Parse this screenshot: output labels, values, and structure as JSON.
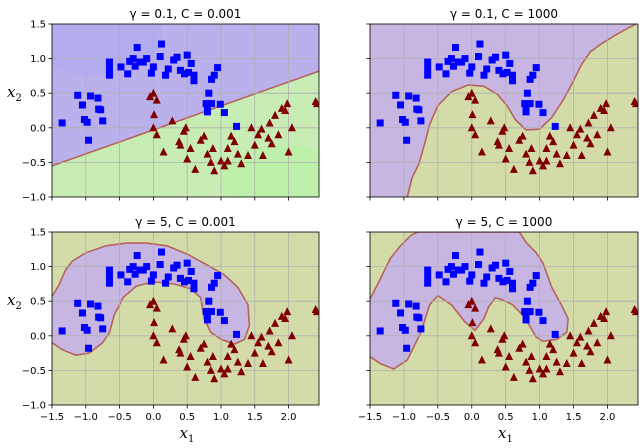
{
  "chart_data": [
    {
      "type": "scatter",
      "title": "γ = 0.1, C = 0.001",
      "title_parts": {
        "gamma": "γ = 0.1",
        "sep": ", ",
        "c": "C = 0.001"
      },
      "xlabel": "",
      "ylabel": "x2",
      "ylabel_sub": "2",
      "xlim": [
        -1.5,
        2.45
      ],
      "ylim": [
        -1.0,
        1.5
      ],
      "xticks": [],
      "yticks": [
        "−1.0",
        "−0.5",
        "0.0",
        "0.5",
        "1.0",
        "1.5"
      ],
      "grid": true,
      "boundary": "linear",
      "colors": {
        "class0_region": "#b9b0ec",
        "class1_region": "#c8edb4",
        "boundary": "#b5635d",
        "class0_marker": "#0000ff",
        "class1_marker": "#800000"
      }
    },
    {
      "type": "scatter",
      "title": "γ = 0.1, C = 1000",
      "title_parts": {
        "gamma": "γ = 0.1",
        "sep": ", ",
        "c": "C = 1000"
      },
      "xlabel": "",
      "ylabel": "",
      "xlim": [
        -1.5,
        2.45
      ],
      "ylim": [
        -1.0,
        1.5
      ],
      "xticks": [],
      "yticks": [],
      "grid": true,
      "boundary": "curved",
      "colors": {
        "class0_region": "#c8b6e2",
        "class1_region": "#d3dca9",
        "boundary": "#b5635d",
        "class0_marker": "#0000ff",
        "class1_marker": "#800000"
      }
    },
    {
      "type": "scatter",
      "title": "γ = 5, C = 0.001",
      "title_parts": {
        "gamma": "γ = 5",
        "sep": ", ",
        "c": "C = 0.001"
      },
      "xlabel": "x1",
      "xlabel_sub": "1",
      "ylabel": "x2",
      "ylabel_sub": "2",
      "xlim": [
        -1.5,
        2.45
      ],
      "ylim": [
        -1.0,
        1.5
      ],
      "xticks": [
        "−1.5",
        "−1.0",
        "−0.5",
        "0.0",
        "0.5",
        "1.0",
        "1.5",
        "2.0"
      ],
      "yticks": [
        "−1.0",
        "−0.5",
        "0.0",
        "0.5",
        "1.0",
        "1.5"
      ],
      "grid": true,
      "boundary": "moon",
      "colors": {
        "class0_region": "#c8b6e2",
        "class1_region": "#d3dca9",
        "boundary": "#b5635d",
        "class0_marker": "#0000ff",
        "class1_marker": "#800000"
      }
    },
    {
      "type": "scatter",
      "title": "γ = 5, C = 1000",
      "title_parts": {
        "gamma": "γ = 5",
        "sep": ", ",
        "c": "C = 1000"
      },
      "xlabel": "x1",
      "xlabel_sub": "1",
      "ylabel": "",
      "xlim": [
        -1.5,
        2.45
      ],
      "ylim": [
        -1.0,
        1.5
      ],
      "xticks": [
        "−1.5",
        "−1.0",
        "−0.5",
        "0.0",
        "0.5",
        "1.0",
        "1.5",
        "2.0"
      ],
      "yticks": [],
      "grid": true,
      "boundary": "tight",
      "colors": {
        "class0_region": "#c8b6e2",
        "class1_region": "#d3dca9",
        "boundary": "#b5635d",
        "class0_marker": "#0000ff",
        "class1_marker": "#800000"
      }
    }
  ],
  "points": {
    "class0_squares": [
      [
        -1.35,
        0.07
      ],
      [
        -1.12,
        0.47
      ],
      [
        -1.05,
        0.33
      ],
      [
        -1.02,
        0.12
      ],
      [
        -0.98,
        0.08
      ],
      [
        -0.96,
        -0.18
      ],
      [
        -0.93,
        0.46
      ],
      [
        -0.82,
        0.43
      ],
      [
        -0.81,
        0.27
      ],
      [
        -0.78,
        0.26
      ],
      [
        -0.75,
        0.1
      ],
      [
        -0.65,
        0.95
      ],
      [
        -0.65,
        0.85
      ],
      [
        -0.65,
        0.76
      ],
      [
        -0.48,
        0.88
      ],
      [
        -0.38,
        0.78
      ],
      [
        -0.35,
        0.96
      ],
      [
        -0.3,
        1.0
      ],
      [
        -0.27,
        0.89
      ],
      [
        -0.24,
        1.16
      ],
      [
        -0.2,
        0.95
      ],
      [
        -0.15,
        0.95
      ],
      [
        -0.1,
        1.0
      ],
      [
        -0.03,
        0.79
      ],
      [
        0.0,
        0.88
      ],
      [
        0.1,
        1.03
      ],
      [
        0.12,
        1.21
      ],
      [
        0.18,
        0.76
      ],
      [
        0.22,
        0.85
      ],
      [
        0.3,
        0.98
      ],
      [
        0.35,
        1.02
      ],
      [
        0.4,
        0.83
      ],
      [
        0.46,
        0.78
      ],
      [
        0.5,
        1.05
      ],
      [
        0.52,
        0.8
      ],
      [
        0.56,
        0.93
      ],
      [
        0.6,
        0.68
      ],
      [
        0.6,
        0.76
      ],
      [
        0.78,
        0.35
      ],
      [
        0.8,
        0.33
      ],
      [
        0.8,
        0.23
      ],
      [
        0.82,
        0.5
      ],
      [
        0.86,
        0.7
      ],
      [
        0.86,
        0.35
      ],
      [
        0.9,
        0.76
      ],
      [
        0.95,
        0.87
      ],
      [
        0.99,
        0.34
      ],
      [
        1.05,
        0.22
      ],
      [
        1.23,
        0.02
      ]
    ],
    "class1_triangles": [
      [
        -0.05,
        0.45
      ],
      [
        0.0,
        0.5
      ],
      [
        0.05,
        0.4
      ],
      [
        0.01,
        0.19
      ],
      [
        0.0,
        0.0
      ],
      [
        0.05,
        -0.1
      ],
      [
        0.15,
        -0.35
      ],
      [
        0.28,
        0.1
      ],
      [
        0.38,
        -0.2
      ],
      [
        0.4,
        -0.25
      ],
      [
        0.45,
        -0.05
      ],
      [
        0.48,
        0.0
      ],
      [
        0.5,
        -0.45
      ],
      [
        0.55,
        -0.3
      ],
      [
        0.62,
        -0.6
      ],
      [
        0.7,
        -0.18
      ],
      [
        0.75,
        -0.12
      ],
      [
        0.8,
        -0.38
      ],
      [
        0.85,
        -0.5
      ],
      [
        0.88,
        -0.3
      ],
      [
        0.9,
        -0.62
      ],
      [
        1.0,
        -0.48
      ],
      [
        1.05,
        -0.55
      ],
      [
        1.1,
        -0.3
      ],
      [
        1.1,
        -0.48
      ],
      [
        1.15,
        -0.12
      ],
      [
        1.2,
        -0.2
      ],
      [
        1.25,
        -0.38
      ],
      [
        1.3,
        -0.52
      ],
      [
        1.4,
        -0.4
      ],
      [
        1.45,
        0.0
      ],
      [
        1.5,
        -0.25
      ],
      [
        1.55,
        -0.1
      ],
      [
        1.6,
        -0.02
      ],
      [
        1.62,
        -0.4
      ],
      [
        1.7,
        -0.15
      ],
      [
        1.72,
        0.07
      ],
      [
        1.75,
        -0.23
      ],
      [
        1.8,
        0.18
      ],
      [
        1.85,
        -0.1
      ],
      [
        1.9,
        0.28
      ],
      [
        1.95,
        0.25
      ],
      [
        1.98,
        0.35
      ],
      [
        2.0,
        -0.35
      ],
      [
        2.05,
        0.0
      ],
      [
        2.4,
        0.38
      ],
      [
        2.42,
        0.35
      ]
    ]
  }
}
